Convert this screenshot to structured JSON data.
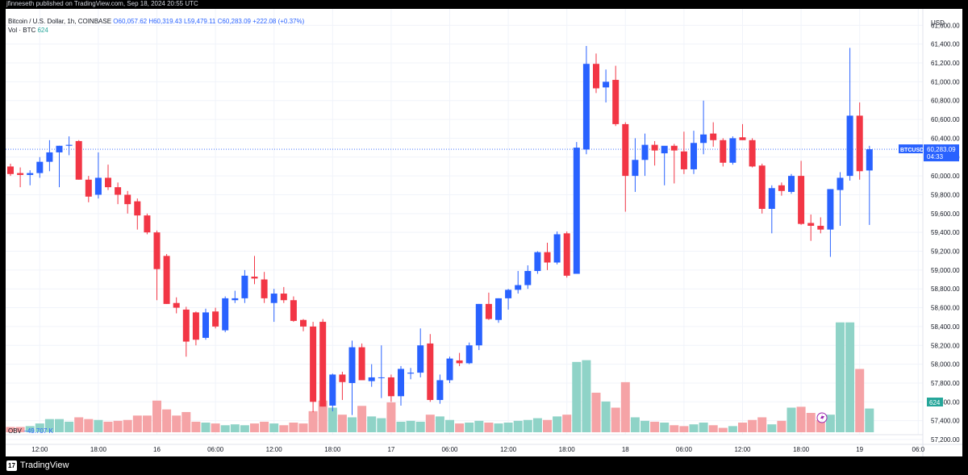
{
  "header": {
    "attribution": "jfinneseth published on TradingView.com, Sep 18, 2024 20:55 UTC"
  },
  "legend": {
    "symbol": "Bitcoin / U.S. Dollar, 1h, COINBASE",
    "open": "O60,057.62",
    "high": "H60,319.43",
    "low": "L59,479.11",
    "close": "C60,283.09",
    "change": "+222.08 (+0.37%)",
    "volume_label": "Vol · BTC",
    "volume_value": "624",
    "obv_label": "OBV",
    "obv_value": "−49.707 K"
  },
  "footer": {
    "brand": "TradingView",
    "logo_glyph": "17"
  },
  "colors": {
    "up": "#2962ff",
    "down": "#f23645",
    "vol_up": "#8fd3c7",
    "vol_down": "#f5a3a6",
    "grid": "#f0f3fa",
    "axis_text": "#131722",
    "price_line": "#2962ff",
    "vol_badge": "#26a69a"
  },
  "chart_data": {
    "type": "candlestick",
    "currency": "USD",
    "ylim": [
      57080,
      61680
    ],
    "y_ticks": [
      "61,600.00",
      "61,400.00",
      "61,200.00",
      "61,000.00",
      "60,800.00",
      "60,600.00",
      "60,400.00",
      "60,200.00",
      "60,000.00",
      "59,800.00",
      "59,600.00",
      "59,400.00",
      "59,200.00",
      "59,000.00",
      "58,800.00",
      "58,600.00",
      "58,400.00",
      "58,200.00",
      "58,000.00",
      "57,800.00",
      "57,600.00",
      "57,400.00",
      "57,200.00"
    ],
    "x_ticks": [
      {
        "label": "12:00",
        "i": 3
      },
      {
        "label": "18:00",
        "i": 9
      },
      {
        "label": "16",
        "i": 15
      },
      {
        "label": "06:00",
        "i": 21
      },
      {
        "label": "12:00",
        "i": 27
      },
      {
        "label": "18:00",
        "i": 33
      },
      {
        "label": "17",
        "i": 39
      },
      {
        "label": "06:00",
        "i": 45
      },
      {
        "label": "12:00",
        "i": 51
      },
      {
        "label": "18:00",
        "i": 57
      },
      {
        "label": "18",
        "i": 63
      },
      {
        "label": "06:00",
        "i": 69
      },
      {
        "label": "12:00",
        "i": 75
      },
      {
        "label": "18:00",
        "i": 81
      },
      {
        "label": "19",
        "i": 87
      },
      {
        "label": "06:0",
        "i": 93
      }
    ],
    "price_label": "BTCUSD",
    "last_price": "60,283.09",
    "countdown": "04:33",
    "volume_label_value": "624",
    "candles": [
      {
        "o": 60100,
        "h": 60130,
        "l": 60000,
        "c": 60020,
        "v": 6
      },
      {
        "o": 60030,
        "h": 60090,
        "l": 59880,
        "c": 60010,
        "v": 6
      },
      {
        "o": 60010,
        "h": 60060,
        "l": 59900,
        "c": 60030,
        "v": 7
      },
      {
        "o": 60030,
        "h": 60200,
        "l": 59980,
        "c": 60150,
        "v": 10
      },
      {
        "o": 60150,
        "h": 60380,
        "l": 60050,
        "c": 60250,
        "v": 15
      },
      {
        "o": 60250,
        "h": 60320,
        "l": 59880,
        "c": 60320,
        "v": 15
      },
      {
        "o": 60320,
        "h": 60420,
        "l": 60220,
        "c": 60330,
        "v": 12
      },
      {
        "o": 60370,
        "h": 60380,
        "l": 59960,
        "c": 59960,
        "v": 17
      },
      {
        "o": 59960,
        "h": 60000,
        "l": 59720,
        "c": 59780,
        "v": 15
      },
      {
        "o": 59800,
        "h": 60250,
        "l": 59760,
        "c": 59980,
        "v": 14
      },
      {
        "o": 59980,
        "h": 60120,
        "l": 59850,
        "c": 59880,
        "v": 12
      },
      {
        "o": 59880,
        "h": 59930,
        "l": 59700,
        "c": 59800,
        "v": 13
      },
      {
        "o": 59800,
        "h": 59840,
        "l": 59600,
        "c": 59700,
        "v": 14
      },
      {
        "o": 59730,
        "h": 59760,
        "l": 59430,
        "c": 59580,
        "v": 19
      },
      {
        "o": 59580,
        "h": 59600,
        "l": 59380,
        "c": 59400,
        "v": 19
      },
      {
        "o": 59400,
        "h": 59420,
        "l": 58680,
        "c": 59010,
        "v": 36
      },
      {
        "o": 59150,
        "h": 59170,
        "l": 58640,
        "c": 58640,
        "v": 26
      },
      {
        "o": 58650,
        "h": 58710,
        "l": 58540,
        "c": 58600,
        "v": 19
      },
      {
        "o": 58580,
        "h": 58610,
        "l": 58080,
        "c": 58240,
        "v": 23
      },
      {
        "o": 58550,
        "h": 58560,
        "l": 58200,
        "c": 58260,
        "v": 12
      },
      {
        "o": 58280,
        "h": 58590,
        "l": 58260,
        "c": 58550,
        "v": 11
      },
      {
        "o": 58560,
        "h": 58600,
        "l": 58380,
        "c": 58400,
        "v": 10
      },
      {
        "o": 58360,
        "h": 58720,
        "l": 58340,
        "c": 58700,
        "v": 8
      },
      {
        "o": 58680,
        "h": 58780,
        "l": 58650,
        "c": 58700,
        "v": 9
      },
      {
        "o": 58700,
        "h": 59000,
        "l": 58650,
        "c": 58940,
        "v": 8
      },
      {
        "o": 58930,
        "h": 59150,
        "l": 58850,
        "c": 58910,
        "v": 10
      },
      {
        "o": 58900,
        "h": 58980,
        "l": 58650,
        "c": 58700,
        "v": 12
      },
      {
        "o": 58650,
        "h": 58800,
        "l": 58450,
        "c": 58750,
        "v": 10
      },
      {
        "o": 58750,
        "h": 58820,
        "l": 58650,
        "c": 58680,
        "v": 8
      },
      {
        "o": 58680,
        "h": 58720,
        "l": 58450,
        "c": 58460,
        "v": 11
      },
      {
        "o": 58470,
        "h": 58480,
        "l": 58350,
        "c": 58400,
        "v": 10
      },
      {
        "o": 58400,
        "h": 58450,
        "l": 57490,
        "c": 57600,
        "v": 24
      },
      {
        "o": 58450,
        "h": 58480,
        "l": 57550,
        "c": 57550,
        "v": 36
      },
      {
        "o": 57560,
        "h": 57900,
        "l": 57500,
        "c": 57890,
        "v": 28
      },
      {
        "o": 57890,
        "h": 57920,
        "l": 57620,
        "c": 57810,
        "v": 20
      },
      {
        "o": 57800,
        "h": 58250,
        "l": 57460,
        "c": 58180,
        "v": 17
      },
      {
        "o": 58180,
        "h": 58220,
        "l": 57850,
        "c": 57830,
        "v": 30
      },
      {
        "o": 57820,
        "h": 58000,
        "l": 57760,
        "c": 57860,
        "v": 18
      },
      {
        "o": 57860,
        "h": 58200,
        "l": 57640,
        "c": 57860,
        "v": 16
      },
      {
        "o": 57860,
        "h": 57890,
        "l": 57600,
        "c": 57660,
        "v": 34
      },
      {
        "o": 57660,
        "h": 57980,
        "l": 57560,
        "c": 57950,
        "v": 12
      },
      {
        "o": 57900,
        "h": 57960,
        "l": 57840,
        "c": 57910,
        "v": 13
      },
      {
        "o": 57910,
        "h": 58380,
        "l": 57860,
        "c": 58200,
        "v": 12
      },
      {
        "o": 58220,
        "h": 58320,
        "l": 57600,
        "c": 57620,
        "v": 20
      },
      {
        "o": 57620,
        "h": 57890,
        "l": 57580,
        "c": 57830,
        "v": 18
      },
      {
        "o": 57830,
        "h": 58080,
        "l": 57800,
        "c": 58060,
        "v": 14
      },
      {
        "o": 58040,
        "h": 58120,
        "l": 57980,
        "c": 58010,
        "v": 10
      },
      {
        "o": 58010,
        "h": 58230,
        "l": 58000,
        "c": 58200,
        "v": 11
      },
      {
        "o": 58200,
        "h": 58640,
        "l": 58150,
        "c": 58640,
        "v": 13
      },
      {
        "o": 58640,
        "h": 58760,
        "l": 58470,
        "c": 58480,
        "v": 11
      },
      {
        "o": 58470,
        "h": 58700,
        "l": 58440,
        "c": 58700,
        "v": 10
      },
      {
        "o": 58700,
        "h": 58800,
        "l": 58580,
        "c": 58790,
        "v": 11
      },
      {
        "o": 58790,
        "h": 58990,
        "l": 58750,
        "c": 58840,
        "v": 13
      },
      {
        "o": 58840,
        "h": 59050,
        "l": 58800,
        "c": 58990,
        "v": 14
      },
      {
        "o": 58990,
        "h": 59200,
        "l": 58960,
        "c": 59190,
        "v": 16
      },
      {
        "o": 59190,
        "h": 59290,
        "l": 59000,
        "c": 59080,
        "v": 14
      },
      {
        "o": 59080,
        "h": 59410,
        "l": 59060,
        "c": 59380,
        "v": 18
      },
      {
        "o": 59390,
        "h": 59410,
        "l": 58920,
        "c": 58940,
        "v": 20
      },
      {
        "o": 58960,
        "h": 60360,
        "l": 58960,
        "c": 60300,
        "v": 80
      },
      {
        "o": 60280,
        "h": 61380,
        "l": 60230,
        "c": 61190,
        "v": 82
      },
      {
        "o": 61190,
        "h": 61300,
        "l": 60880,
        "c": 60930,
        "v": 45
      },
      {
        "o": 60940,
        "h": 61130,
        "l": 60780,
        "c": 61000,
        "v": 35
      },
      {
        "o": 61020,
        "h": 61170,
        "l": 60530,
        "c": 60550,
        "v": 28
      },
      {
        "o": 60550,
        "h": 60570,
        "l": 59620,
        "c": 60000,
        "v": 57
      },
      {
        "o": 60000,
        "h": 60400,
        "l": 59830,
        "c": 60170,
        "v": 17
      },
      {
        "o": 60170,
        "h": 60450,
        "l": 60000,
        "c": 60330,
        "v": 13
      },
      {
        "o": 60330,
        "h": 60370,
        "l": 60110,
        "c": 60270,
        "v": 12
      },
      {
        "o": 60240,
        "h": 60300,
        "l": 59900,
        "c": 60320,
        "v": 11
      },
      {
        "o": 60320,
        "h": 60340,
        "l": 59920,
        "c": 60270,
        "v": 8
      },
      {
        "o": 60260,
        "h": 60470,
        "l": 60020,
        "c": 60070,
        "v": 7
      },
      {
        "o": 60070,
        "h": 60480,
        "l": 60020,
        "c": 60350,
        "v": 9
      },
      {
        "o": 60350,
        "h": 60800,
        "l": 60230,
        "c": 60440,
        "v": 11
      },
      {
        "o": 60450,
        "h": 60570,
        "l": 60310,
        "c": 60380,
        "v": 8
      },
      {
        "o": 60380,
        "h": 60400,
        "l": 60100,
        "c": 60140,
        "v": 5
      },
      {
        "o": 60140,
        "h": 60420,
        "l": 60120,
        "c": 60400,
        "v": 7
      },
      {
        "o": 60410,
        "h": 60550,
        "l": 60380,
        "c": 60380,
        "v": 11
      },
      {
        "o": 60380,
        "h": 60400,
        "l": 60090,
        "c": 60100,
        "v": 14
      },
      {
        "o": 60110,
        "h": 60130,
        "l": 59600,
        "c": 59650,
        "v": 17
      },
      {
        "o": 59650,
        "h": 59900,
        "l": 59390,
        "c": 59870,
        "v": 9
      },
      {
        "o": 59900,
        "h": 59930,
        "l": 59790,
        "c": 59840,
        "v": 13
      },
      {
        "o": 59830,
        "h": 60020,
        "l": 59810,
        "c": 60000,
        "v": 28
      },
      {
        "o": 60000,
        "h": 60160,
        "l": 59480,
        "c": 59490,
        "v": 29
      },
      {
        "o": 59500,
        "h": 59590,
        "l": 59310,
        "c": 59470,
        "v": 22
      },
      {
        "o": 59470,
        "h": 59560,
        "l": 59390,
        "c": 59430,
        "v": 14
      },
      {
        "o": 59430,
        "h": 59860,
        "l": 59140,
        "c": 59860,
        "v": 20
      },
      {
        "o": 59850,
        "h": 60040,
        "l": 59470,
        "c": 59980,
        "v": 125
      },
      {
        "o": 60000,
        "h": 61360,
        "l": 59950,
        "c": 60640,
        "v": 125
      },
      {
        "o": 60640,
        "h": 60780,
        "l": 59960,
        "c": 60050,
        "v": 72
      },
      {
        "o": 60057.62,
        "h": 60319.43,
        "l": 59479.11,
        "c": 60283.09,
        "v": 27
      }
    ]
  }
}
